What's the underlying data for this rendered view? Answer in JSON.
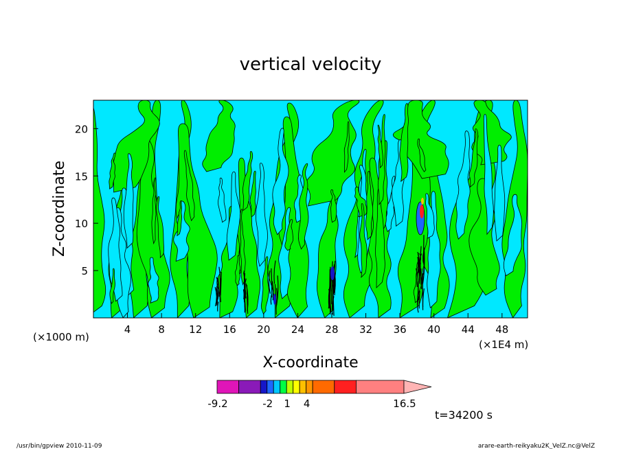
{
  "chart_data": {
    "type": "heatmap",
    "title": "vertical velocity",
    "xlabel": "X-coordinate",
    "ylabel": "Z-coordinate",
    "x_unit_left": "(×1000 m)",
    "x_unit_right": "(×1E4 m)",
    "xlim": [
      0,
      51
    ],
    "ylim": [
      0,
      23
    ],
    "x_ticks": [
      4,
      8,
      12,
      16,
      20,
      24,
      28,
      32,
      36,
      40,
      44,
      48
    ],
    "y_ticks": [
      5,
      10,
      15,
      20
    ],
    "colorbar": {
      "colors": [
        "#e015b8",
        "#8a1ab8",
        "#1616c8",
        "#1e66ff",
        "#00c8ff",
        "#00ff44",
        "#bfff00",
        "#ffff00",
        "#ffc000",
        "#ff9600",
        "#ff6a00",
        "#ff2020",
        "#ff8080"
      ],
      "weights": [
        2,
        2,
        0.6,
        0.6,
        0.6,
        0.6,
        0.6,
        0.6,
        0.6,
        0.6,
        2,
        2,
        4.4
      ],
      "tick_labels": [
        {
          "label": "-9.2",
          "boundary": 0
        },
        {
          "label": "-2",
          "boundary": 3
        },
        {
          "label": "1",
          "boundary": 6
        },
        {
          "label": "4",
          "boundary": 9
        },
        {
          "label": "16.5",
          "boundary": 13
        }
      ]
    },
    "time_label": "t=34200 s",
    "field_colors": {
      "positive": "#00ee00",
      "negative": "#00e8ff",
      "contour": "#000000"
    },
    "grid": false
  },
  "footer": {
    "left": "/usr/bin/gpview   2010-11-09",
    "right": "arare-earth-reikyaku2K_VelZ.nc@VelZ"
  }
}
